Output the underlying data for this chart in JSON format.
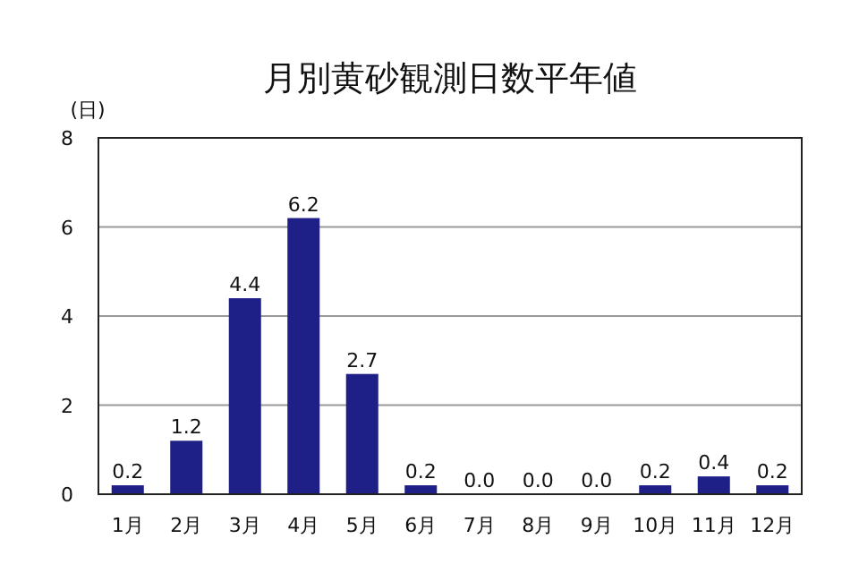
{
  "chart_data": {
    "type": "bar",
    "title": "月別黄砂観測日数平年値",
    "ylabel": "(日)",
    "categories": [
      "1月",
      "2月",
      "3月",
      "4月",
      "5月",
      "6月",
      "7月",
      "8月",
      "9月",
      "10月",
      "11月",
      "12月"
    ],
    "values": [
      0.2,
      1.2,
      4.4,
      6.2,
      2.7,
      0.2,
      0,
      0,
      0,
      0.2,
      0.4,
      0.2
    ],
    "value_labels": [
      "0.2",
      "1.2",
      "4.4",
      "6.2",
      "2.7",
      "0.2",
      "0.0",
      "0.0",
      "0.0",
      "0.2",
      "0.4",
      "0.2"
    ],
    "color": "#1f1f88",
    "ylim": [
      0,
      8
    ],
    "yticks": [
      0,
      2,
      4,
      6,
      8
    ],
    "grid": "y"
  }
}
